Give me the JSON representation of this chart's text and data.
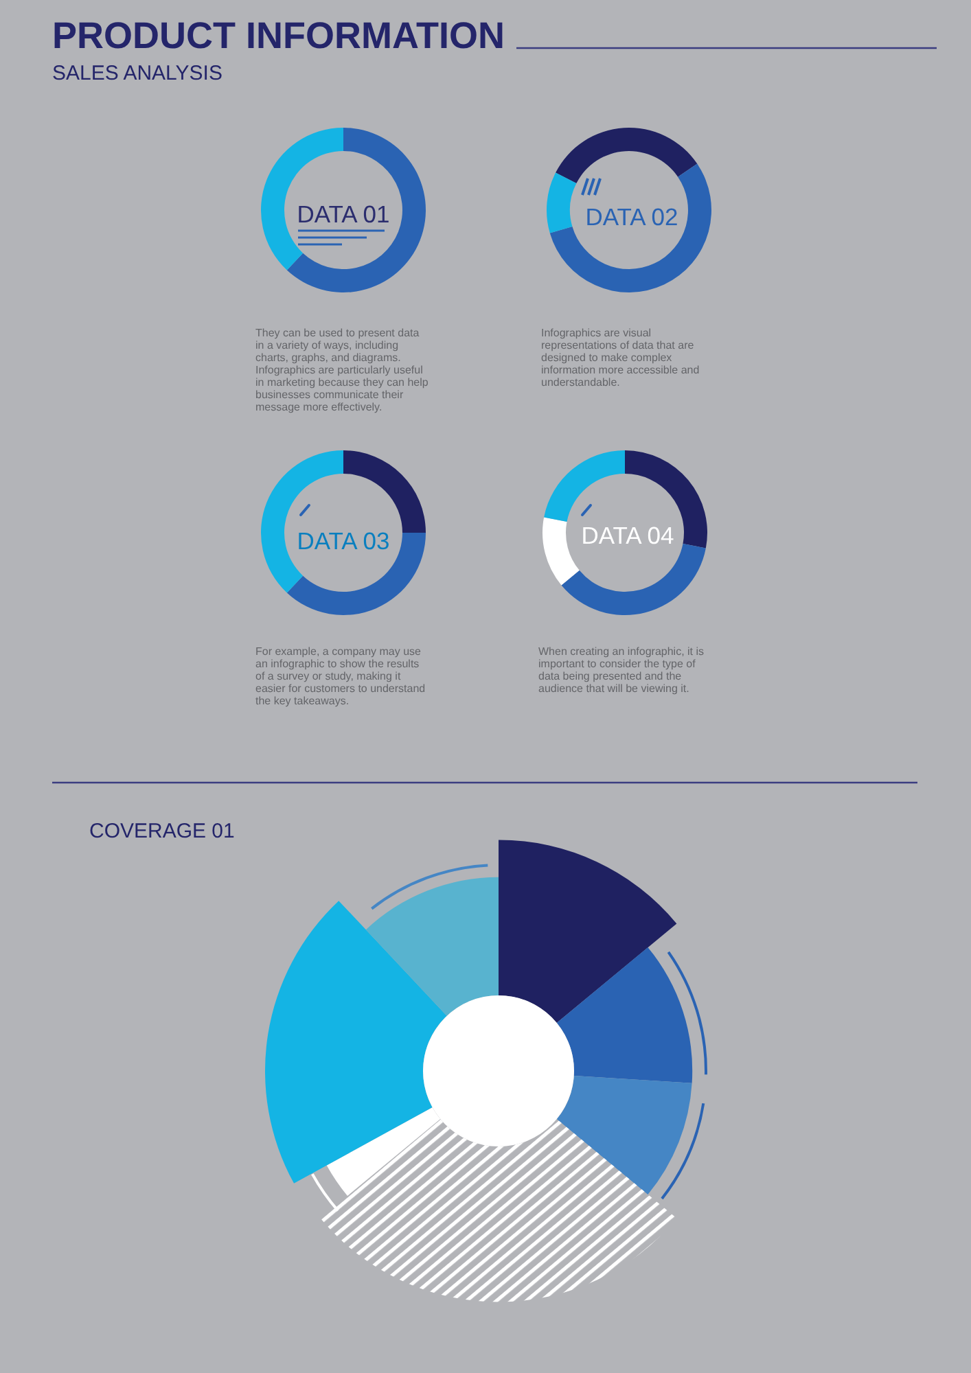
{
  "chart_data": [
    {
      "type": "other",
      "title": "PRODUCT INFORMATION",
      "subtitle": "SALES ANALYSIS"
    },
    {
      "type": "donut",
      "title": "DATA 01",
      "categories": [
        null,
        null
      ],
      "values": [
        62,
        38
      ],
      "colors": [
        "#2a63b3",
        "#14b4e4"
      ],
      "annotations": [
        "They can be used to present data in a variety of ways, including charts, graphs, and diagrams. Infographics are particularly useful in marketing because they can help businesses communicate their message more effectively."
      ]
    },
    {
      "type": "donut",
      "title": "DATA 02",
      "categories": [
        null,
        null,
        null
      ],
      "values": [
        33,
        55,
        12
      ],
      "colors": [
        "#1f2161",
        "#2a63b3",
        "#14b4e4"
      ],
      "annotations": [
        "Infographics are visual representations of data that are designed to make complex information more accessible and understandable."
      ]
    },
    {
      "type": "donut",
      "title": "DATA 03",
      "categories": [
        null,
        null,
        null
      ],
      "values": [
        25,
        37,
        38
      ],
      "colors": [
        "#1f2161",
        "#2a63b3",
        "#14b4e4"
      ],
      "annotations": [
        "For example, a company may use an infographic to show the results of a survey or study, making it easier for customers to understand the key takeaways."
      ]
    },
    {
      "type": "donut",
      "title": "DATA 04",
      "categories": [
        null,
        null,
        null,
        null
      ],
      "values": [
        28,
        36,
        14,
        22
      ],
      "colors": [
        "#1f2161",
        "#2a63b3",
        "#ffffff",
        "#14b4e4"
      ],
      "annotations": [
        "When creating an infographic, it is important to consider the type of data being presented and the audience that will be viewing it."
      ]
    },
    {
      "type": "donut",
      "title": "COVERAGE 01",
      "categories": [
        null,
        null,
        null,
        null,
        null,
        null,
        null
      ],
      "values": [
        14,
        12,
        10,
        28,
        3,
        21,
        12
      ],
      "colors": [
        "#1f2161",
        "#2a63b3",
        "#4586c5",
        "#ffffff",
        "#ffffff",
        "#14b4e4",
        "#58b3cf"
      ]
    }
  ]
}
